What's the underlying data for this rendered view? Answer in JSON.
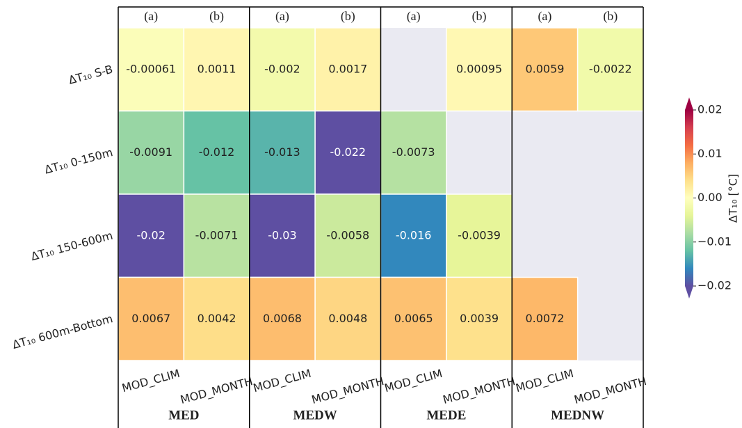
{
  "chart_data": {
    "type": "heatmap",
    "rows": [
      "ΔT₁₀ S-B",
      "ΔT₁₀ 0-150m",
      "ΔT₁₀ 150-600m",
      "ΔT₁₀ 600m-Bottom"
    ],
    "column_headers": [
      "(a)",
      "(b)",
      "(a)",
      "(b)",
      "(a)",
      "(b)",
      "(a)",
      "(b)"
    ],
    "categories": [
      "MOD_CLIM",
      "MOD_MONTH",
      "MOD_CLIM",
      "MOD_MONTH",
      "MOD_CLIM",
      "MOD_MONTH",
      "MOD_CLIM",
      "MOD_MONTH"
    ],
    "groups": [
      "MED",
      "MEDW",
      "MEDE",
      "MEDNW"
    ],
    "values": [
      [
        -0.00061,
        0.0011,
        -0.002,
        0.0017,
        null,
        0.00095,
        0.0059,
        -0.0022
      ],
      [
        -0.0091,
        -0.012,
        -0.013,
        -0.022,
        -0.0073,
        null,
        null,
        null
      ],
      [
        -0.02,
        -0.0071,
        -0.03,
        -0.0058,
        -0.016,
        -0.0039,
        null,
        null
      ],
      [
        0.0067,
        0.0042,
        0.0068,
        0.0048,
        0.0065,
        0.0039,
        0.0072,
        null
      ]
    ],
    "colorbar_label": "ΔT₁₀ [°C]",
    "zlim": [
      -0.02,
      0.02
    ],
    "zticks": [
      {
        "value": -0.02,
        "label": "−0.02"
      },
      {
        "value": -0.01,
        "label": "−0.01"
      },
      {
        "value": 0,
        "label": "0.00"
      },
      0.01,
      0.02
    ],
    "colormap": [
      "#5e4fa2",
      "#3288bd",
      "#66c2a5",
      "#abdda4",
      "#e6f598",
      "#ffffbf",
      "#fee08b",
      "#fdae61",
      "#f46d43",
      "#d53e4f",
      "#9e0142"
    ]
  }
}
